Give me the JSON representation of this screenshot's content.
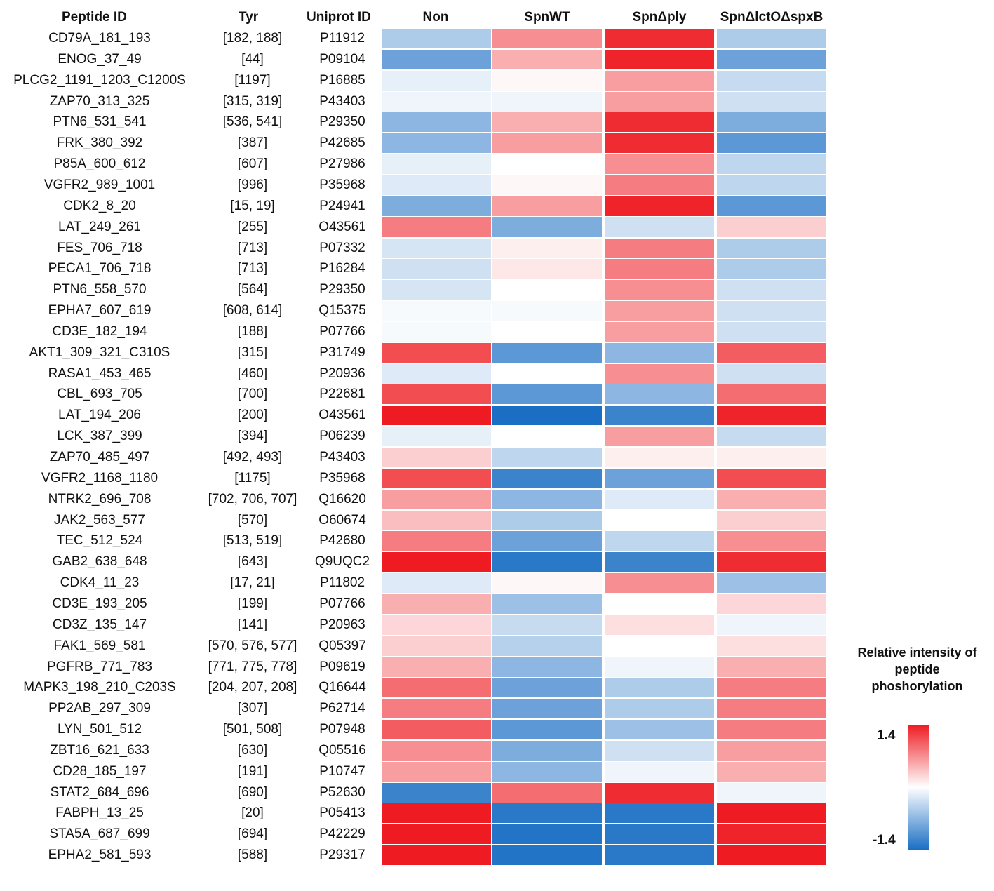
{
  "headers": {
    "peptide": "Peptide ID",
    "tyr": "Tyr",
    "uniprot": "Uniprot ID"
  },
  "legend": {
    "title": [
      "Relative intensity of",
      "peptide",
      "phoshorylation"
    ],
    "max_label": "1.4",
    "min_label": "-1.4",
    "colors": {
      "high": "#ee1c22",
      "mid": "#ffffff",
      "low": "#1a6fc4"
    }
  },
  "chart_data": {
    "type": "heatmap",
    "title": "Relative intensity of peptide phoshorylation",
    "columns": [
      "Non",
      "SpnWT",
      "SpnΔply",
      "SpnΔlctOΔspxB"
    ],
    "range": [
      -1.4,
      1.4
    ],
    "rows": [
      {
        "peptide": "CD79A_181_193",
        "tyr": "[182, 188]",
        "uniprot": "P11912",
        "values": [
          -0.5,
          0.7,
          1.3,
          -0.5
        ]
      },
      {
        "peptide": "ENOG_37_49",
        "tyr": "[44]",
        "uniprot": "P09104",
        "values": [
          -0.9,
          0.5,
          1.35,
          -0.9
        ]
      },
      {
        "peptide": "PLCG2_1191_1203_C1200S",
        "tyr": "[1197]",
        "uniprot": "P16885",
        "values": [
          -0.15,
          0.05,
          0.6,
          -0.35
        ]
      },
      {
        "peptide": "ZAP70_313_325",
        "tyr": "[315, 319]",
        "uniprot": "P43403",
        "values": [
          -0.1,
          -0.1,
          0.6,
          -0.3
        ]
      },
      {
        "peptide": "PTN6_531_541",
        "tyr": "[536, 541]",
        "uniprot": "P29350",
        "values": [
          -0.7,
          0.5,
          1.3,
          -0.8
        ]
      },
      {
        "peptide": "FRK_380_392",
        "tyr": "[387]",
        "uniprot": "P42685",
        "values": [
          -0.7,
          0.6,
          1.3,
          -1.0
        ]
      },
      {
        "peptide": "P85A_600_612",
        "tyr": "[607]",
        "uniprot": "P27986",
        "values": [
          -0.15,
          0.0,
          0.7,
          -0.4
        ]
      },
      {
        "peptide": "VGFR2_989_1001",
        "tyr": "[996]",
        "uniprot": "P35968",
        "values": [
          -0.2,
          0.05,
          0.8,
          -0.4
        ]
      },
      {
        "peptide": "CDK2_8_20",
        "tyr": "[15, 19]",
        "uniprot": "P24941",
        "values": [
          -0.8,
          0.6,
          1.35,
          -1.0
        ]
      },
      {
        "peptide": "LAT_249_261",
        "tyr": "[255]",
        "uniprot": "O43561",
        "values": [
          0.8,
          -0.8,
          -0.3,
          0.3
        ]
      },
      {
        "peptide": "FES_706_718",
        "tyr": "[713]",
        "uniprot": "P07332",
        "values": [
          -0.25,
          0.1,
          0.8,
          -0.5
        ]
      },
      {
        "peptide": "PECA1_706_718",
        "tyr": "[713]",
        "uniprot": "P16284",
        "values": [
          -0.3,
          0.15,
          0.8,
          -0.5
        ]
      },
      {
        "peptide": "PTN6_558_570",
        "tyr": "[564]",
        "uniprot": "P29350",
        "values": [
          -0.25,
          0.0,
          0.7,
          -0.3
        ]
      },
      {
        "peptide": "EPHA7_607_619",
        "tyr": "[608, 614]",
        "uniprot": "Q15375",
        "values": [
          -0.05,
          -0.05,
          0.6,
          -0.3
        ]
      },
      {
        "peptide": "CD3E_182_194",
        "tyr": "[188]",
        "uniprot": "P07766",
        "values": [
          -0.05,
          0.0,
          0.6,
          -0.3
        ]
      },
      {
        "peptide": "AKT1_309_321_C310S",
        "tyr": "[315]",
        "uniprot": "P31749",
        "values": [
          1.1,
          -1.0,
          -0.7,
          1.0
        ]
      },
      {
        "peptide": "RASA1_453_465",
        "tyr": "[460]",
        "uniprot": "P20936",
        "values": [
          -0.2,
          0.0,
          0.7,
          -0.3
        ]
      },
      {
        "peptide": "CBL_693_705",
        "tyr": "[700]",
        "uniprot": "P22681",
        "values": [
          1.1,
          -1.0,
          -0.7,
          0.9
        ]
      },
      {
        "peptide": "LAT_194_206",
        "tyr": "[200]",
        "uniprot": "O43561",
        "values": [
          1.4,
          -1.4,
          -1.2,
          1.35
        ]
      },
      {
        "peptide": "LCK_387_399",
        "tyr": "[394]",
        "uniprot": "P06239",
        "values": [
          -0.15,
          0.0,
          0.6,
          -0.35
        ]
      },
      {
        "peptide": "ZAP70_485_497",
        "tyr": "[492, 493]",
        "uniprot": "P43403",
        "values": [
          0.3,
          -0.4,
          0.1,
          0.1
        ]
      },
      {
        "peptide": "VGFR2_1168_1180",
        "tyr": "[1175]",
        "uniprot": "P35968",
        "values": [
          1.1,
          -1.2,
          -0.9,
          1.1
        ]
      },
      {
        "peptide": "NTRK2_696_708",
        "tyr": "[702, 706, 707]",
        "uniprot": "Q16620",
        "values": [
          0.6,
          -0.7,
          -0.2,
          0.5
        ]
      },
      {
        "peptide": "JAK2_563_577",
        "tyr": "[570]",
        "uniprot": "O60674",
        "values": [
          0.4,
          -0.5,
          0.0,
          0.3
        ]
      },
      {
        "peptide": "TEC_512_524",
        "tyr": "[513, 519]",
        "uniprot": "P42680",
        "values": [
          0.8,
          -0.9,
          -0.4,
          0.7
        ]
      },
      {
        "peptide": "GAB2_638_648",
        "tyr": "[643]",
        "uniprot": "Q9UQC2",
        "values": [
          1.4,
          -1.3,
          -1.2,
          1.3
        ]
      },
      {
        "peptide": "CDK4_11_23",
        "tyr": "[17, 21]",
        "uniprot": "P11802",
        "values": [
          -0.2,
          0.05,
          0.7,
          -0.6
        ]
      },
      {
        "peptide": "CD3E_193_205",
        "tyr": "[199]",
        "uniprot": "P07766",
        "values": [
          0.5,
          -0.6,
          0.0,
          0.25
        ]
      },
      {
        "peptide": "CD3Z_135_147",
        "tyr": "[141]",
        "uniprot": "P20963",
        "values": [
          0.25,
          -0.35,
          0.2,
          -0.1
        ]
      },
      {
        "peptide": "FAK1_569_581",
        "tyr": "[570, 576, 577]",
        "uniprot": "Q05397",
        "values": [
          0.3,
          -0.45,
          0.0,
          0.2
        ]
      },
      {
        "peptide": "PGFRB_771_783",
        "tyr": "[771, 775, 778]",
        "uniprot": "P09619",
        "values": [
          0.5,
          -0.7,
          -0.1,
          0.5
        ]
      },
      {
        "peptide": "MAPK3_198_210_C203S",
        "tyr": "[204, 207, 208]",
        "uniprot": "Q16644",
        "values": [
          0.9,
          -0.9,
          -0.5,
          0.8
        ]
      },
      {
        "peptide": "PP2AB_297_309",
        "tyr": "[307]",
        "uniprot": "P62714",
        "values": [
          0.8,
          -0.9,
          -0.5,
          0.8
        ]
      },
      {
        "peptide": "LYN_501_512",
        "tyr": "[501, 508]",
        "uniprot": "P07948",
        "values": [
          1.0,
          -1.0,
          -0.6,
          0.8
        ]
      },
      {
        "peptide": "ZBT16_621_633",
        "tyr": "[630]",
        "uniprot": "Q05516",
        "values": [
          0.7,
          -0.8,
          -0.3,
          0.6
        ]
      },
      {
        "peptide": "CD28_185_197",
        "tyr": "[191]",
        "uniprot": "P10747",
        "values": [
          0.6,
          -0.7,
          -0.1,
          0.5
        ]
      },
      {
        "peptide": "STAT2_684_696",
        "tyr": "[690]",
        "uniprot": "P52630",
        "values": [
          -1.2,
          0.9,
          1.3,
          -0.1
        ]
      },
      {
        "peptide": "FABPH_13_25",
        "tyr": "[20]",
        "uniprot": "P05413",
        "values": [
          1.4,
          -1.3,
          -1.3,
          1.4
        ]
      },
      {
        "peptide": "STA5A_687_699",
        "tyr": "[694]",
        "uniprot": "P42229",
        "values": [
          1.4,
          -1.35,
          -1.3,
          1.35
        ]
      },
      {
        "peptide": "EPHA2_581_593",
        "tyr": "[588]",
        "uniprot": "P29317",
        "values": [
          1.4,
          -1.35,
          -1.3,
          1.4
        ]
      }
    ]
  }
}
